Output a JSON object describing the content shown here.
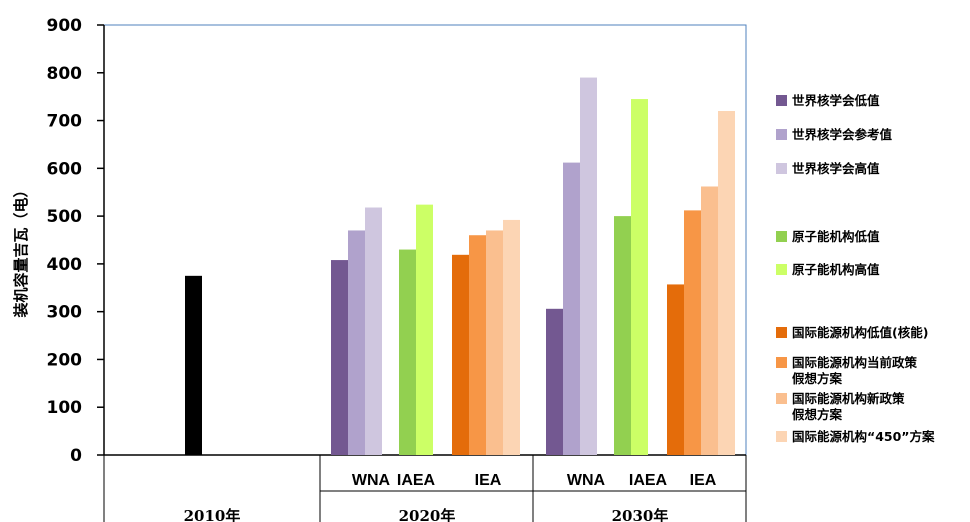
{
  "chart_data": {
    "type": "bar",
    "ylabel": "装机容量吉瓦（电）",
    "ylim": [
      0,
      900
    ],
    "yticks": [
      "0",
      "100",
      "200",
      "300",
      "400",
      "500",
      "600",
      "700",
      "800",
      "900"
    ],
    "grid": false,
    "legend_position": "right",
    "periods": [
      "2010年",
      "2020年",
      "2030年"
    ],
    "groups": [
      {
        "period": "2020年",
        "label": "WNA"
      },
      {
        "period": "2020年",
        "label": "IAEA"
      },
      {
        "period": "2020年",
        "label": "IEA"
      },
      {
        "period": "2030年",
        "label": "WNA"
      },
      {
        "period": "2030年",
        "label": "IAEA"
      },
      {
        "period": "2030年",
        "label": "IEA"
      }
    ],
    "series": [
      {
        "name": "2010年",
        "color": "#000000",
        "legend": false,
        "values": {
          "2010年": 375
        }
      },
      {
        "name": "世界核学会低值",
        "color": "#735891",
        "values": {
          "2020年 WNA": 408,
          "2030年 WNA": 306
        }
      },
      {
        "name": "世界核学会参考值",
        "color": "#B0A2CC",
        "values": {
          "2020年 WNA": 470,
          "2030年 WNA": 612
        }
      },
      {
        "name": "世界核学会高值",
        "color": "#CFC6DF",
        "values": {
          "2020年 WNA": 518,
          "2030年 WNA": 790
        }
      },
      {
        "name": "原子能机构低值",
        "color": "#92D050",
        "values": {
          "2020年 IAEA": 430,
          "2030年 IAEA": 500
        }
      },
      {
        "name": "原子能机构高值",
        "color": "#CCFF66",
        "values": {
          "2020年 IAEA": 524,
          "2030年 IAEA": 745
        }
      },
      {
        "name": "国际能源机构低值(核能)",
        "color": "#E46C0A",
        "values": {
          "2020年 IEA": 419,
          "2030年 IEA": 357
        }
      },
      {
        "name": "国际能源机构当前政策假想方案",
        "color": "#F79646",
        "values": {
          "2020年 IEA": 460,
          "2030年 IEA": 512
        }
      },
      {
        "name": "国际能源机构新政策假想方案",
        "color": "#FABF8F",
        "values": {
          "2020年 IEA": 470,
          "2030年 IEA": 562
        }
      },
      {
        "name": "国际能源机构“450”方案",
        "color": "#FCD5B4",
        "values": {
          "2020年 IEA": 492,
          "2030年 IEA": 720
        }
      }
    ],
    "legend": [
      {
        "lines": [
          "世界核学会低值"
        ],
        "color": "#735891"
      },
      {
        "lines": [
          "世界核学会参考值"
        ],
        "color": "#B0A2CC"
      },
      {
        "lines": [
          "世界核学会高值"
        ],
        "color": "#CFC6DF"
      },
      {
        "lines": [
          "原子能机构低值"
        ],
        "color": "#92D050"
      },
      {
        "lines": [
          "原子能机构高值"
        ],
        "color": "#CCFF66"
      },
      {
        "lines": [
          "国际能源机构低值(核能)"
        ],
        "color": "#E46C0A"
      },
      {
        "lines": [
          "国际能源机构当前政策",
          "假想方案"
        ],
        "color": "#F79646"
      },
      {
        "lines": [
          "国际能源机构新政策",
          "假想方案"
        ],
        "color": "#FABF8F"
      },
      {
        "lines": [
          "国际能源机构“450”方案"
        ],
        "color": "#FCD5B4"
      }
    ]
  }
}
